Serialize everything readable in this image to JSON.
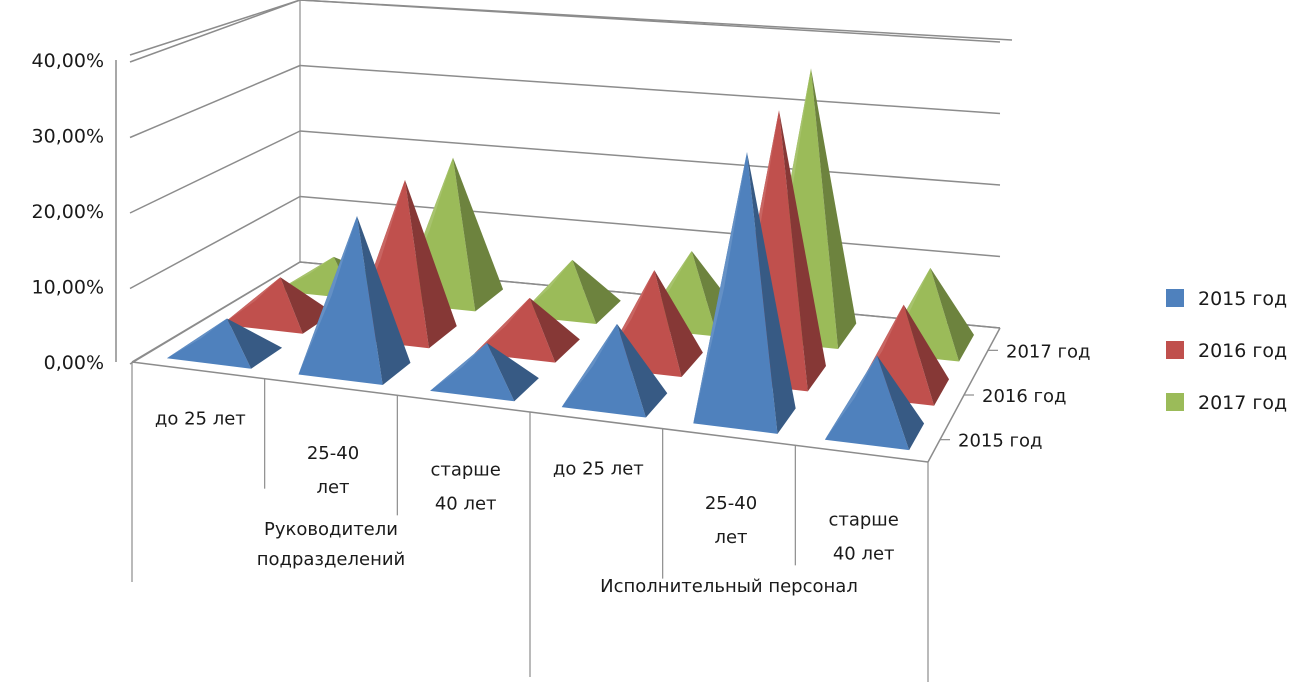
{
  "chart_data": {
    "type": "bar",
    "style": "3d-pyramid",
    "y_ticks": [
      "0,00%",
      "10,00%",
      "20,00%",
      "30,00%",
      "40,00%"
    ],
    "ylim": [
      0,
      40
    ],
    "categories": [
      "до 25 лет",
      "25-40 лет",
      "старше 40 лет",
      "до 25 лет",
      "25-40 лет",
      "старше 40 лет"
    ],
    "category_lines": [
      [
        "до 25 лет"
      ],
      [
        "25-40",
        "лет"
      ],
      [
        "старше",
        "40 лет"
      ],
      [
        "до 25 лет"
      ],
      [
        "25-40",
        "лет"
      ],
      [
        "старше",
        "40 лет"
      ]
    ],
    "groups": [
      {
        "label": "Руководители подразделений",
        "lines": [
          "Руководители",
          "подразделений"
        ],
        "span": [
          0,
          2
        ]
      },
      {
        "label": "Исполнительный персонал",
        "lines": [
          "Исполнительный персонал"
        ],
        "span": [
          3,
          5
        ]
      }
    ],
    "depth_labels": [
      "2015 год",
      "2016 год",
      "2017 год"
    ],
    "series": [
      {
        "name": "2015 год",
        "color": "#4f81bd",
        "values": [
          5,
          22,
          6,
          11,
          38,
          11
        ]
      },
      {
        "name": "2016 год",
        "color": "#c0504d",
        "values": [
          6,
          22,
          7,
          13,
          38,
          12
        ]
      },
      {
        "name": "2017 год",
        "color": "#9bbb59",
        "values": [
          4,
          20,
          7,
          10,
          38,
          11
        ]
      }
    ],
    "legend_position": "right",
    "grid": true
  }
}
